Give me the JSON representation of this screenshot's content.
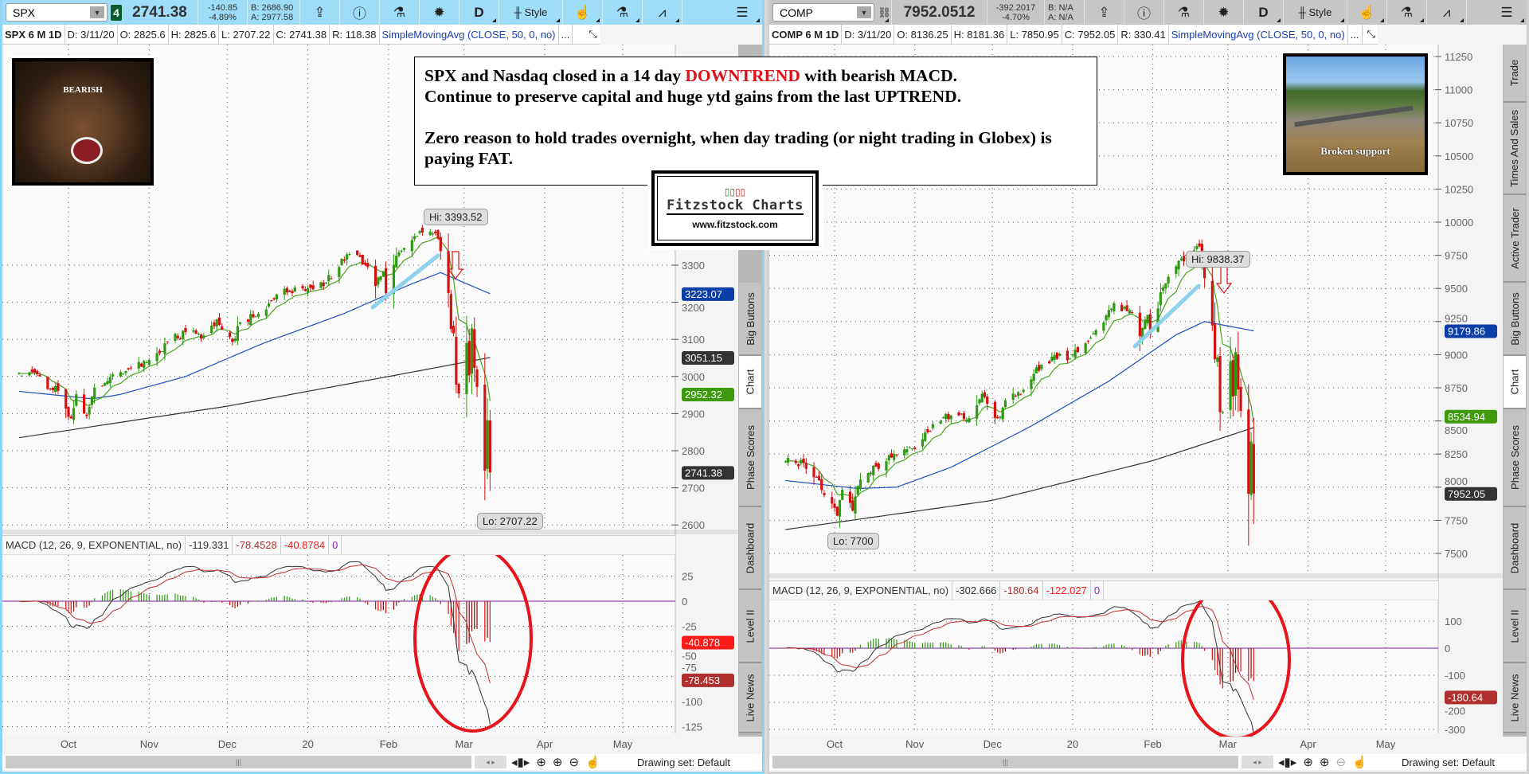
{
  "left": {
    "toolbar": {
      "symbol": "SPX",
      "link_badge": "4",
      "last": "2741.38",
      "change": "-140.85",
      "change_pct": "-4.89%",
      "bid": "B: 2686.90",
      "ask": "A: 2977.58",
      "period": "D",
      "style": "Style"
    },
    "info": {
      "title": "SPX 6 M 1D",
      "date": "D: 3/11/20",
      "open": "O: 2825.6",
      "high": "H: 2825.6",
      "low": "L: 2707.22",
      "close": "C: 2741.38",
      "range": "R: 118.38",
      "study": "SimpleMovingAvg (CLOSE, 50, 0, no)",
      "more": "..."
    },
    "macd_header": {
      "label": "MACD (12, 26, 9, EXPONENTIAL, no)",
      "value": "-119.331",
      "avg": "-78.4528",
      "diff": "-40.8784",
      "zero": "0"
    },
    "hi_label": "Hi: 3393.52",
    "lo_label": "Lo: 2707.22",
    "axis_labels": [
      {
        "text": "3223.07",
        "color": "#0b3fa8",
        "value": 3223.07
      },
      {
        "text": "3051.15",
        "color": "#333333",
        "value": 3051.15
      },
      {
        "text": "2952.32",
        "color": "#3c9a0c",
        "value": 2952.32
      },
      {
        "text": "2741.38",
        "color": "#333333",
        "value": 2741.38
      }
    ],
    "macd_axis_labels": [
      {
        "text": "-40.878",
        "color": "#ff1a1a",
        "value": -40.878
      },
      {
        "text": "-78.453",
        "color": "#b03030",
        "value": -78.453
      }
    ],
    "drawing_set": "Drawing set: Default"
  },
  "right": {
    "toolbar": {
      "symbol": "COMP",
      "last": "7952.0512",
      "change": "-392.2017",
      "change_pct": "-4.70%",
      "bid": "B: N/A",
      "ask": "A: N/A",
      "period": "D",
      "style": "Style"
    },
    "info": {
      "title": "COMP 6 M 1D",
      "date": "D: 3/11/20",
      "open": "O: 8136.25",
      "high": "H: 8181.36",
      "low": "L: 7850.95",
      "close": "C: 7952.05",
      "range": "R: 330.41",
      "study": "SimpleMovingAvg (CLOSE, 50, 0, no)",
      "more": "..."
    },
    "macd_header": {
      "label": "MACD (12, 26, 9, EXPONENTIAL, no)",
      "value": "-302.666",
      "avg": "-180.64",
      "diff": "-122.027",
      "zero": "0"
    },
    "hi_label": "Hi: 9838.37",
    "lo_label": "Lo: 7700",
    "axis_labels": [
      {
        "text": "9179.86",
        "color": "#0b3fa8",
        "value": 9179.86
      },
      {
        "text": "8534.94",
        "color": "#3c9a0c",
        "value": 8534.94
      },
      {
        "text": "7952.05",
        "color": "#333333",
        "value": 7952.05
      }
    ],
    "macd_axis_labels": [
      {
        "text": "-180.64",
        "color": "#b03030",
        "value": -180.64
      }
    ],
    "drawing_set": "Drawing set: Default"
  },
  "sidebar_tabs": [
    "Trade",
    "Times And Sales",
    "Active Trader",
    "Big Buttons",
    "Chart",
    "Phase Scores",
    "Dashboard",
    "Level II",
    "Live News"
  ],
  "active_tab": "Chart",
  "time_axis": [
    "Oct",
    "Nov",
    "Dec",
    "20",
    "Feb",
    "Mar",
    "Apr",
    "May"
  ],
  "annotation": {
    "line1_a": "SPX and Nasdaq closed in a 14 day ",
    "line1_red": "DOWNTREND",
    "line1_b": " with bearish MACD.",
    "line2": "Continue to preserve capital and huge ytd gains from the last UPTREND.",
    "line3": "Zero reason to hold trades overnight, when day trading (or night trading in Globex) is paying FAT."
  },
  "logo": {
    "name": "Fitzstock Charts",
    "url": "www.fitzstock.com"
  },
  "bear_image_text": "BEARISH",
  "bridge_image_text": "Broken support",
  "chart_data": [
    {
      "type": "candlestick",
      "symbol": "SPX",
      "period": "6 M",
      "interval": "1D",
      "price_ticks": [
        2600,
        2700,
        2800,
        2900,
        3000,
        3100,
        3200,
        3300
      ],
      "macd_ticks": [
        25,
        0,
        -25,
        -50,
        -75,
        -100,
        -125
      ],
      "closes": [
        [
          "2019-09-12",
          3009
        ],
        [
          "2019-09-19",
          3006
        ],
        [
          "2019-09-24",
          2966
        ],
        [
          "2019-09-27",
          2961
        ],
        [
          "2019-10-02",
          2887
        ],
        [
          "2019-10-04",
          2952
        ],
        [
          "2019-10-08",
          2893
        ],
        [
          "2019-10-11",
          2970
        ],
        [
          "2019-10-17",
          2998
        ],
        [
          "2019-10-25",
          3023
        ],
        [
          "2019-10-31",
          3038
        ],
        [
          "2019-11-08",
          3093
        ],
        [
          "2019-11-15",
          3120
        ],
        [
          "2019-11-22",
          3110
        ],
        [
          "2019-11-27",
          3154
        ],
        [
          "2019-12-03",
          3093
        ],
        [
          "2019-12-06",
          3146
        ],
        [
          "2019-12-13",
          3169
        ],
        [
          "2019-12-20",
          3221
        ],
        [
          "2019-12-27",
          3240
        ],
        [
          "2019-12-31",
          3231
        ],
        [
          "2020-01-03",
          3235
        ],
        [
          "2020-01-08",
          3253
        ],
        [
          "2020-01-17",
          3330
        ],
        [
          "2020-01-24",
          3295
        ],
        [
          "2020-01-27",
          3244
        ],
        [
          "2020-01-30",
          3283
        ],
        [
          "2020-01-31",
          3225
        ],
        [
          "2020-02-05",
          3335
        ],
        [
          "2020-02-12",
          3379
        ],
        [
          "2020-02-19",
          3386
        ],
        [
          "2020-02-21",
          3338
        ],
        [
          "2020-02-24",
          3225
        ],
        [
          "2020-02-25",
          3128
        ],
        [
          "2020-02-26",
          3116
        ],
        [
          "2020-02-27",
          2978
        ],
        [
          "2020-02-28",
          2954
        ],
        [
          "2020-03-02",
          3090
        ],
        [
          "2020-03-03",
          3003
        ],
        [
          "2020-03-04",
          3130
        ],
        [
          "2020-03-05",
          3023
        ],
        [
          "2020-03-06",
          2972
        ],
        [
          "2020-03-09",
          2746
        ],
        [
          "2020-03-10",
          2882
        ],
        [
          "2020-03-11",
          2741.38
        ]
      ],
      "sma50": [
        [
          "2019-09-12",
          2960
        ],
        [
          "2019-10-10",
          2940
        ],
        [
          "2019-10-20",
          2950
        ],
        [
          "2019-11-15",
          3000
        ],
        [
          "2019-12-15",
          3090
        ],
        [
          "2020-01-15",
          3170
        ],
        [
          "2020-02-10",
          3250
        ],
        [
          "2020-02-21",
          3280
        ],
        [
          "2020-03-11",
          3223.07
        ]
      ],
      "sma200": [
        [
          "2019-09-12",
          2835
        ],
        [
          "2019-12-01",
          2920
        ],
        [
          "2020-02-01",
          3000
        ],
        [
          "2020-03-11",
          3051.15
        ]
      ],
      "colors": {
        "up": "#2e9a12",
        "down": "#d41010",
        "sma50": "#1f4fbf",
        "sma200": "#333333",
        "ema": "#4aa520",
        "trend": "#8ed2ec",
        "ellipse": "#e8141c"
      }
    },
    {
      "type": "candlestick",
      "symbol": "COMP",
      "period": "6 M",
      "interval": "1D",
      "price_ticks": [
        7500,
        7750,
        8000,
        8250,
        8500,
        8750,
        9000,
        9250,
        9500,
        9750,
        10000,
        10250,
        10500,
        10750,
        11000,
        11250
      ],
      "macd_ticks": [
        100,
        0,
        -100,
        -200,
        -300
      ],
      "closes": [
        [
          "2019-09-12",
          8194
        ],
        [
          "2019-09-19",
          8183
        ],
        [
          "2019-09-24",
          8077
        ],
        [
          "2019-09-27",
          7940
        ],
        [
          "2019-10-02",
          7785
        ],
        [
          "2019-10-04",
          7982
        ],
        [
          "2019-10-08",
          7823
        ],
        [
          "2019-10-11",
          8057
        ],
        [
          "2019-10-17",
          8156
        ],
        [
          "2019-10-25",
          8243
        ],
        [
          "2019-10-31",
          8292
        ],
        [
          "2019-11-08",
          8475
        ],
        [
          "2019-11-15",
          8541
        ],
        [
          "2019-11-22",
          8520
        ],
        [
          "2019-11-27",
          8705
        ],
        [
          "2019-12-03",
          8520
        ],
        [
          "2019-12-06",
          8656
        ],
        [
          "2019-12-13",
          8735
        ],
        [
          "2019-12-20",
          8925
        ],
        [
          "2019-12-27",
          9007
        ],
        [
          "2019-12-31",
          8973
        ],
        [
          "2020-01-03",
          9020
        ],
        [
          "2020-01-08",
          9129
        ],
        [
          "2020-01-17",
          9389
        ],
        [
          "2020-01-24",
          9315
        ],
        [
          "2020-01-27",
          9139
        ],
        [
          "2020-01-30",
          9299
        ],
        [
          "2020-01-31",
          9151
        ],
        [
          "2020-02-05",
          9508
        ],
        [
          "2020-02-12",
          9726
        ],
        [
          "2020-02-19",
          9817
        ],
        [
          "2020-02-21",
          9577
        ],
        [
          "2020-02-24",
          9221
        ],
        [
          "2020-02-25",
          8966
        ],
        [
          "2020-02-26",
          8980
        ],
        [
          "2020-02-27",
          8566
        ],
        [
          "2020-02-28",
          8567
        ],
        [
          "2020-03-02",
          8952
        ],
        [
          "2020-03-03",
          8684
        ],
        [
          "2020-03-04",
          9019
        ],
        [
          "2020-03-05",
          8738
        ],
        [
          "2020-03-06",
          8575
        ],
        [
          "2020-03-09",
          7950
        ],
        [
          "2020-03-10",
          8344
        ],
        [
          "2020-03-11",
          7952.05
        ]
      ],
      "sma50": [
        [
          "2019-09-12",
          8050
        ],
        [
          "2019-10-10",
          7990
        ],
        [
          "2019-10-25",
          8000
        ],
        [
          "2019-11-15",
          8150
        ],
        [
          "2019-12-15",
          8450
        ],
        [
          "2020-01-15",
          8800
        ],
        [
          "2020-02-10",
          9150
        ],
        [
          "2020-02-21",
          9250
        ],
        [
          "2020-03-11",
          9179.86
        ]
      ],
      "sma200": [
        [
          "2019-09-12",
          7680
        ],
        [
          "2019-12-01",
          7900
        ],
        [
          "2020-02-01",
          8200
        ],
        [
          "2020-03-11",
          8450
        ]
      ],
      "colors": {
        "up": "#2e9a12",
        "down": "#d41010",
        "sma50": "#1f4fbf",
        "sma200": "#333333",
        "ema": "#4aa520",
        "trend": "#8ed2ec",
        "ellipse": "#e8141c"
      }
    }
  ]
}
